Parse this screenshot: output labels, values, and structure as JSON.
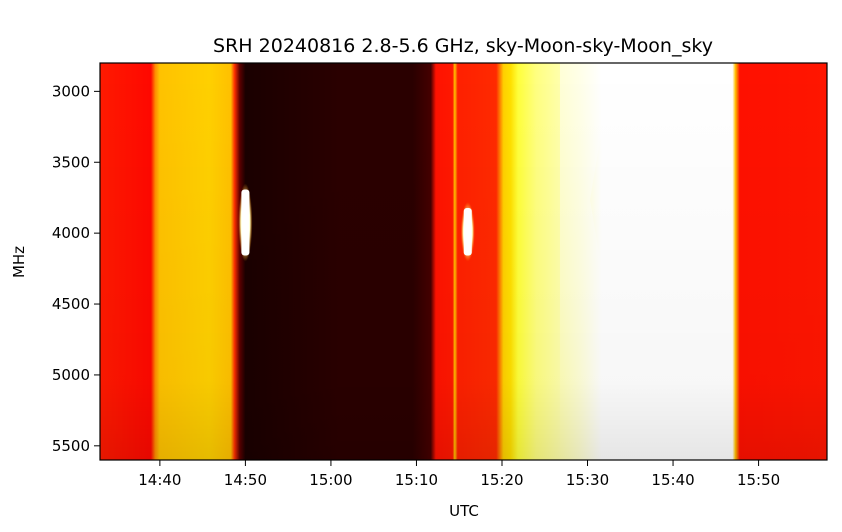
{
  "chart_data": {
    "type": "heatmap",
    "title": "SRH 20240816 2.8-5.6 GHz, sky-Moon-sky-Moon_sky",
    "xlabel": "UTC",
    "ylabel": "MHz",
    "colormap": "hot",
    "colors": {
      "dark": "#2a0000",
      "red": "#ff0e00",
      "orange": "#ffc800",
      "yellow": "#ffff60",
      "white": "#ffffff"
    },
    "xlim": [
      "14:33",
      "15:58"
    ],
    "ylim": [
      5600,
      2800
    ],
    "x_ticks": [
      "14:40",
      "14:50",
      "15:00",
      "15:10",
      "15:20",
      "15:30",
      "15:40",
      "15:50"
    ],
    "y_ticks": [
      3000,
      3500,
      4000,
      4500,
      5000,
      5500
    ],
    "segments": [
      {
        "start": "14:33",
        "end": "14:40",
        "level": "red"
      },
      {
        "start": "14:40",
        "end": "14:49",
        "level": "orange"
      },
      {
        "start": "14:49",
        "end": "15:13",
        "level": "dark"
      },
      {
        "start": "15:13",
        "end": "15:19",
        "level": "red"
      },
      {
        "start": "15:19",
        "end": "15:47",
        "level": "yellow-white"
      },
      {
        "start": "15:47",
        "end": "15:58",
        "level": "red"
      }
    ],
    "bursts": [
      {
        "time": "14:50",
        "freq_min": 3650,
        "freq_max": 4200,
        "level": "white"
      },
      {
        "time": "15:16",
        "freq_min": 3780,
        "freq_max": 4200,
        "level": "white"
      }
    ]
  }
}
